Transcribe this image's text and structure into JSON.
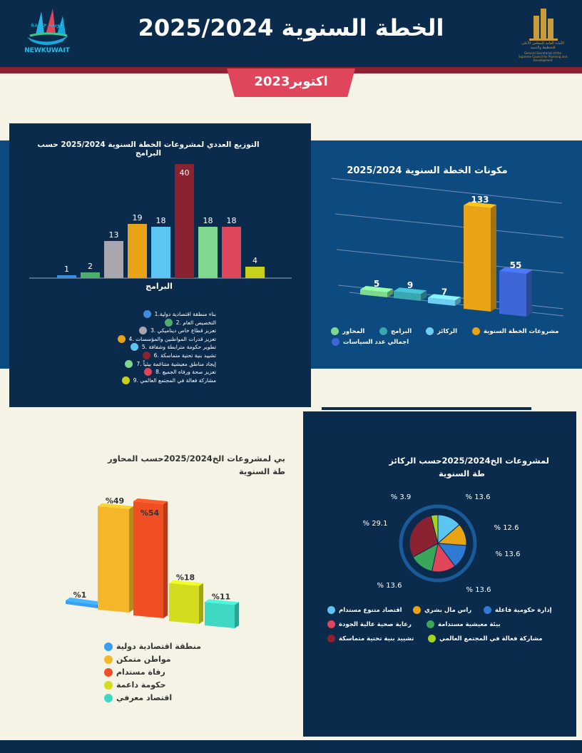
{
  "header": {
    "title": "الخطة السنوية 2025/2024",
    "left_logo_text": "كويت جديدة",
    "left_logo_sub": "NEWKUWAIT",
    "right_logo_text": "الأمانة العامة للمجلس الأعلى للتخطيط والتنمية",
    "right_logo_sub": "General Secretariat of the Supreme Council for Planning and Development",
    "date_label": "اكتوبر2023"
  },
  "colors": {
    "navy": "#0b2b4d",
    "band": "#0d4a7f",
    "red": "#e0465b",
    "maroon": "#8b2232",
    "cream": "#f4f3e6"
  },
  "chart_data": [
    {
      "type": "bar",
      "title": "التوزيع العددي لمشروعات الخطة السنوية 2025/2024 حسب البرامج",
      "xlabel": "البرامج",
      "values": [
        1,
        2,
        13,
        19,
        18,
        40,
        18,
        18,
        4
      ],
      "colors": [
        "#3a8fe0",
        "#4caf6e",
        "#a8a6ae",
        "#e8a316",
        "#5bc6f2",
        "#8b2232",
        "#7ed98f",
        "#e0465b",
        "#c8d01e"
      ],
      "legend": [
        "بناء منطقة اقتصادية دولية.1",
        "التخصيص العام .2",
        "تعزيز قطاع خاص ديناميكي .3",
        "تعزيز قدرات المواطنين والمؤسسات .4",
        "تطوير حكومة مترابطة وشفافة .5",
        "تشييد بنية تحتية متماسكة .6",
        "إيجاد مناطق معيشية متناغمة بيئياً .7",
        "تعزيز صحة ورفاه الجميع .8",
        "مشاركة فعالة في المجتمع العالمي .9"
      ],
      "legend_colors": [
        "#3a8fe0",
        "#4caf6e",
        "#a8a6ae",
        "#e8a316",
        "#5bc6f2",
        "#8b2232",
        "#7ed98f",
        "#e0465b",
        "#c8d01e"
      ]
    },
    {
      "type": "bar",
      "title": "مكونات الخطة السنوية 2025/2024",
      "categories": [
        "المحاور",
        "البرامج",
        "الركائز",
        "مشروعات الخطة السنوية",
        "اجمالي عدد السياسات"
      ],
      "values": [
        5,
        9,
        7,
        133,
        55
      ],
      "colors": [
        "#7ed98f",
        "#3aa6b2",
        "#6fcdf2",
        "#e8a316",
        "#3f66d6"
      ]
    },
    {
      "type": "bar",
      "title_line1": "بي لمشروعات الخ2025/2024حسب المحاور",
      "title_line2": "طة السنوية",
      "value_labels": [
        "%1",
        "%49",
        "%54",
        "%18",
        "%11"
      ],
      "values": [
        1,
        49,
        54,
        18,
        11
      ],
      "colors": [
        "#3a9ff0",
        "#f5b72a",
        "#f04f24",
        "#d4dc1e",
        "#3fd8c2"
      ],
      "legend": [
        "منطقة اقتصادية دولية",
        "مواطن متمكن",
        "رفاة مستدام",
        "حكومة داعمة",
        "اقتصاد معرفي"
      ]
    },
    {
      "type": "pie",
      "title_line1": "لمشروعات الخ2025/2024حسب الركائز",
      "title_line2": "طة السنوية",
      "values": [
        13.6,
        12.6,
        13.6,
        13.6,
        13.6,
        29.1,
        3.9
      ],
      "value_labels": [
        "% 13.6",
        "% 12.6",
        "% 13.6",
        "% 13.6",
        "% 13.6",
        "% 29.1",
        "% 3.9"
      ],
      "colors": [
        "#5bc6f2",
        "#e8a316",
        "#2f7ad2",
        "#e0465b",
        "#3aa65a",
        "#8b2232",
        "#a4d41e"
      ],
      "legend": [
        {
          "label": "إدارة حكومية فاعلة",
          "color": "#2f7ad2"
        },
        {
          "label": "راس مال بشري",
          "color": "#e8a316"
        },
        {
          "label": "اقتصاد متنوع مستدام",
          "color": "#5bc6f2"
        },
        {
          "label": "بيئة معيشية مستدامة",
          "color": "#3aa65a"
        },
        {
          "label": "رعاية صحية عالية الجودة",
          "color": "#e0465b"
        },
        {
          "label": "مشاركة فعالة في المجتمع العالمي",
          "color": "#a4d41e"
        },
        {
          "label": "تشييد بنية تحتية متماسكة",
          "color": "#8b2232"
        }
      ]
    }
  ]
}
